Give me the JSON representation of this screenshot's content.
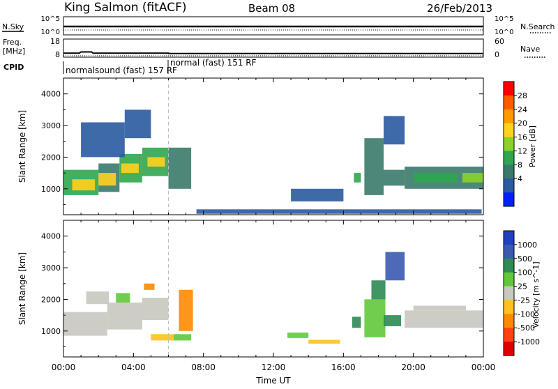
{
  "header": {
    "station": "King Salmon (fitACF)",
    "beam": "Beam 08",
    "date": "26/Feb/2013"
  },
  "strip_labels": {
    "nsky": "N.Sky",
    "nsearch": "N.Search",
    "freq_line1": "Freq.",
    "freq_line2": "[MHz]",
    "nave": "Nave",
    "cpid": "CPID",
    "nsky_ticks": [
      "10^5",
      "10^0"
    ],
    "nsearch_ticks": [
      "10^5",
      "10^0"
    ],
    "freq_ticks": [
      "18",
      "8"
    ],
    "nave_ticks": [
      "60",
      "0"
    ]
  },
  "cpid_segments": [
    {
      "start_hour": 0,
      "label": "normalsound (fast) 157 RF"
    },
    {
      "start_hour": 6,
      "label": "normal (fast) 151 RF"
    }
  ],
  "freq_trace": {
    "hours": [
      0,
      0.9,
      1.0,
      1.6,
      1.7,
      6.0,
      6.0,
      24
    ],
    "mhz": [
      10.2,
      10.2,
      10.9,
      10.9,
      10.2,
      10.2,
      10.0,
      10.0
    ]
  },
  "power_colorbar": {
    "label": "Power [dB]",
    "ticks": [
      "28",
      "24",
      "20",
      "16",
      "12",
      "8",
      "4"
    ],
    "colors": [
      "#ff0000",
      "#ff5a00",
      "#ff9a00",
      "#ffd21e",
      "#8cd22a",
      "#2fa64e",
      "#3a7a6a",
      "#2a5aa0",
      "#0020ff"
    ]
  },
  "velocity_colorbar": {
    "label": "Velocity [m s^-1]",
    "ticks": [
      "1000",
      "500",
      "100",
      "25",
      "-25",
      "-100",
      "-500",
      "-1000"
    ],
    "colors": [
      "#2040c0",
      "#3a5ab0",
      "#2f8a55",
      "#62c83a",
      "#c8c8c0",
      "#ffc020",
      "#ff8a00",
      "#ff4010",
      "#e00000"
    ]
  },
  "axes": {
    "ylabel": "Slant Range [km]",
    "xlabel": "Time UT",
    "xticks": [
      "00:00",
      "04:00",
      "08:00",
      "12:00",
      "16:00",
      "20:00",
      "00:00"
    ],
    "yticks": [
      "1000",
      "2000",
      "3000",
      "4000"
    ]
  },
  "chart_data": [
    {
      "type": "heatmap",
      "title": "",
      "xlabel": "",
      "ylabel": "Slant Range [km]",
      "quantity": "Power [dB]",
      "xlim": [
        0,
        24
      ],
      "ylim": [
        180,
        4500
      ],
      "clim": [
        0,
        30
      ],
      "cells": [
        {
          "x0": 0.0,
          "x1": 2.0,
          "y0": 800,
          "y1": 1600,
          "v": 12
        },
        {
          "x0": 0.5,
          "x1": 1.8,
          "y0": 950,
          "y1": 1300,
          "v": 18
        },
        {
          "x0": 2.0,
          "x1": 3.2,
          "y0": 900,
          "y1": 1800,
          "v": 10
        },
        {
          "x0": 2.0,
          "x1": 3.0,
          "y0": 1100,
          "y1": 1500,
          "v": 17
        },
        {
          "x0": 3.2,
          "x1": 4.5,
          "y0": 1200,
          "y1": 2100,
          "v": 12
        },
        {
          "x0": 3.3,
          "x1": 4.3,
          "y0": 1500,
          "y1": 1800,
          "v": 19
        },
        {
          "x0": 4.5,
          "x1": 6.0,
          "y0": 1400,
          "y1": 2300,
          "v": 13
        },
        {
          "x0": 4.8,
          "x1": 5.8,
          "y0": 1700,
          "y1": 2000,
          "v": 17
        },
        {
          "x0": 6.0,
          "x1": 7.3,
          "y0": 1000,
          "y1": 2300,
          "v": 8
        },
        {
          "x0": 1.0,
          "x1": 3.5,
          "y0": 2000,
          "y1": 3100,
          "v": 6
        },
        {
          "x0": 3.5,
          "x1": 5.0,
          "y0": 2600,
          "y1": 3500,
          "v": 6
        },
        {
          "x0": 7.6,
          "x1": 23.9,
          "y0": 210,
          "y1": 350,
          "v": 4
        },
        {
          "x0": 13.0,
          "x1": 16.0,
          "y0": 600,
          "y1": 1000,
          "v": 5
        },
        {
          "x0": 16.6,
          "x1": 17.0,
          "y0": 1200,
          "y1": 1500,
          "v": 11
        },
        {
          "x0": 17.2,
          "x1": 18.3,
          "y0": 800,
          "y1": 2600,
          "v": 7
        },
        {
          "x0": 18.3,
          "x1": 19.5,
          "y0": 2400,
          "y1": 3300,
          "v": 5
        },
        {
          "x0": 18.3,
          "x1": 19.5,
          "y0": 1100,
          "y1": 1600,
          "v": 9
        },
        {
          "x0": 19.5,
          "x1": 24.0,
          "y0": 1000,
          "y1": 1700,
          "v": 8
        },
        {
          "x0": 20.0,
          "x1": 22.5,
          "y0": 1200,
          "y1": 1500,
          "v": 13
        },
        {
          "x0": 22.8,
          "x1": 24.0,
          "y0": 1200,
          "y1": 1500,
          "v": 15
        }
      ]
    },
    {
      "type": "heatmap",
      "title": "",
      "xlabel": "Time UT",
      "ylabel": "Slant Range [km]",
      "quantity": "Velocity [m s^-1]",
      "xlim": [
        0,
        24
      ],
      "ylim": [
        180,
        4500
      ],
      "clim": [
        -1000,
        1000
      ],
      "cells": [
        {
          "x0": 0.0,
          "x1": 2.5,
          "y0": 850,
          "y1": 1600,
          "v": 0
        },
        {
          "x0": 2.5,
          "x1": 4.5,
          "y0": 1050,
          "y1": 1900,
          "v": 0
        },
        {
          "x0": 4.5,
          "x1": 6.0,
          "y0": 1350,
          "y1": 2050,
          "v": 0
        },
        {
          "x0": 6.6,
          "x1": 7.4,
          "y0": 1000,
          "y1": 2300,
          "v": -200
        },
        {
          "x0": 5.0,
          "x1": 6.3,
          "y0": 700,
          "y1": 900,
          "v": -60
        },
        {
          "x0": 6.3,
          "x1": 7.3,
          "y0": 700,
          "y1": 900,
          "v": 80
        },
        {
          "x0": 1.3,
          "x1": 2.6,
          "y0": 1850,
          "y1": 2250,
          "v": 0
        },
        {
          "x0": 3.0,
          "x1": 3.8,
          "y0": 1900,
          "y1": 2200,
          "v": 40
        },
        {
          "x0": 4.6,
          "x1": 5.2,
          "y0": 2300,
          "y1": 2500,
          "v": -200
        },
        {
          "x0": 12.8,
          "x1": 14.0,
          "y0": 780,
          "y1": 950,
          "v": 80
        },
        {
          "x0": 14.0,
          "x1": 15.8,
          "y0": 600,
          "y1": 720,
          "v": -80
        },
        {
          "x0": 16.5,
          "x1": 17.0,
          "y0": 1100,
          "y1": 1450,
          "v": 300
        },
        {
          "x0": 17.2,
          "x1": 18.4,
          "y0": 800,
          "y1": 2000,
          "v": 60
        },
        {
          "x0": 17.6,
          "x1": 18.4,
          "y0": 2000,
          "y1": 2600,
          "v": 400
        },
        {
          "x0": 18.4,
          "x1": 19.5,
          "y0": 2600,
          "y1": 3500,
          "v": 900
        },
        {
          "x0": 18.3,
          "x1": 19.3,
          "y0": 1150,
          "y1": 1500,
          "v": 200
        },
        {
          "x0": 19.5,
          "x1": 24.0,
          "y0": 1100,
          "y1": 1650,
          "v": 0
        },
        {
          "x0": 20.0,
          "x1": 23.0,
          "y0": 1650,
          "y1": 1800,
          "v": 0
        }
      ]
    }
  ]
}
